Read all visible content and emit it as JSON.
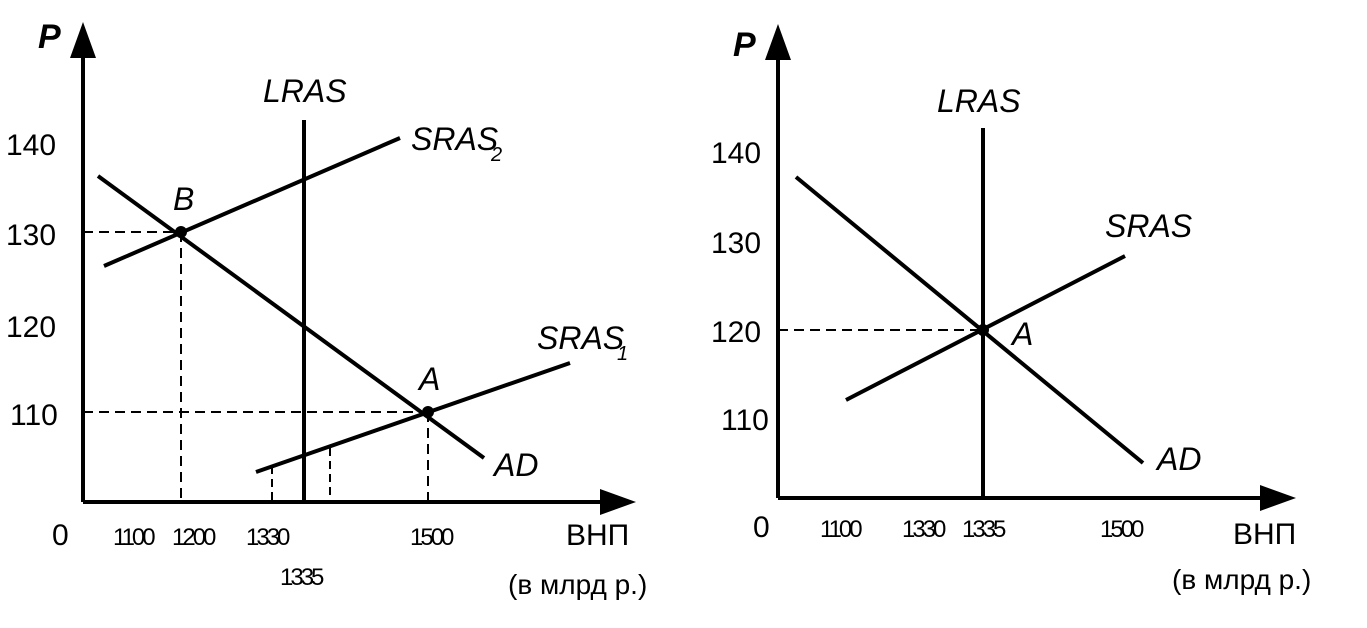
{
  "left_panel": {
    "y_axis": "P",
    "x_axis": "ВНП",
    "x_unit": "(в млрд р.)",
    "origin": "0",
    "y_ticks": [
      "140",
      "130",
      "120",
      "110"
    ],
    "x_ticks": [
      "1100",
      "1200",
      "1330",
      "1500"
    ],
    "x_tick_below": "1335",
    "curves": {
      "lras": "LRAS",
      "sras2": "SRAS",
      "sras2_sub": "2",
      "sras1": "SRAS",
      "sras1_sub": "1",
      "ad": "AD"
    },
    "points": {
      "b": "B",
      "a": "A"
    }
  },
  "right_panel": {
    "y_axis": "P",
    "x_axis": "ВНП",
    "x_unit": "(в млрд р.)",
    "origin": "0",
    "y_ticks": [
      "140",
      "130",
      "120",
      "110"
    ],
    "x_ticks": [
      "1100",
      "1330",
      "1335",
      "1500"
    ],
    "curves": {
      "lras": "LRAS",
      "sras": "SRAS",
      "ad": "AD"
    },
    "points": {
      "a": "A"
    }
  },
  "colors": {
    "ink": "#000000",
    "background": "#ffffff"
  }
}
